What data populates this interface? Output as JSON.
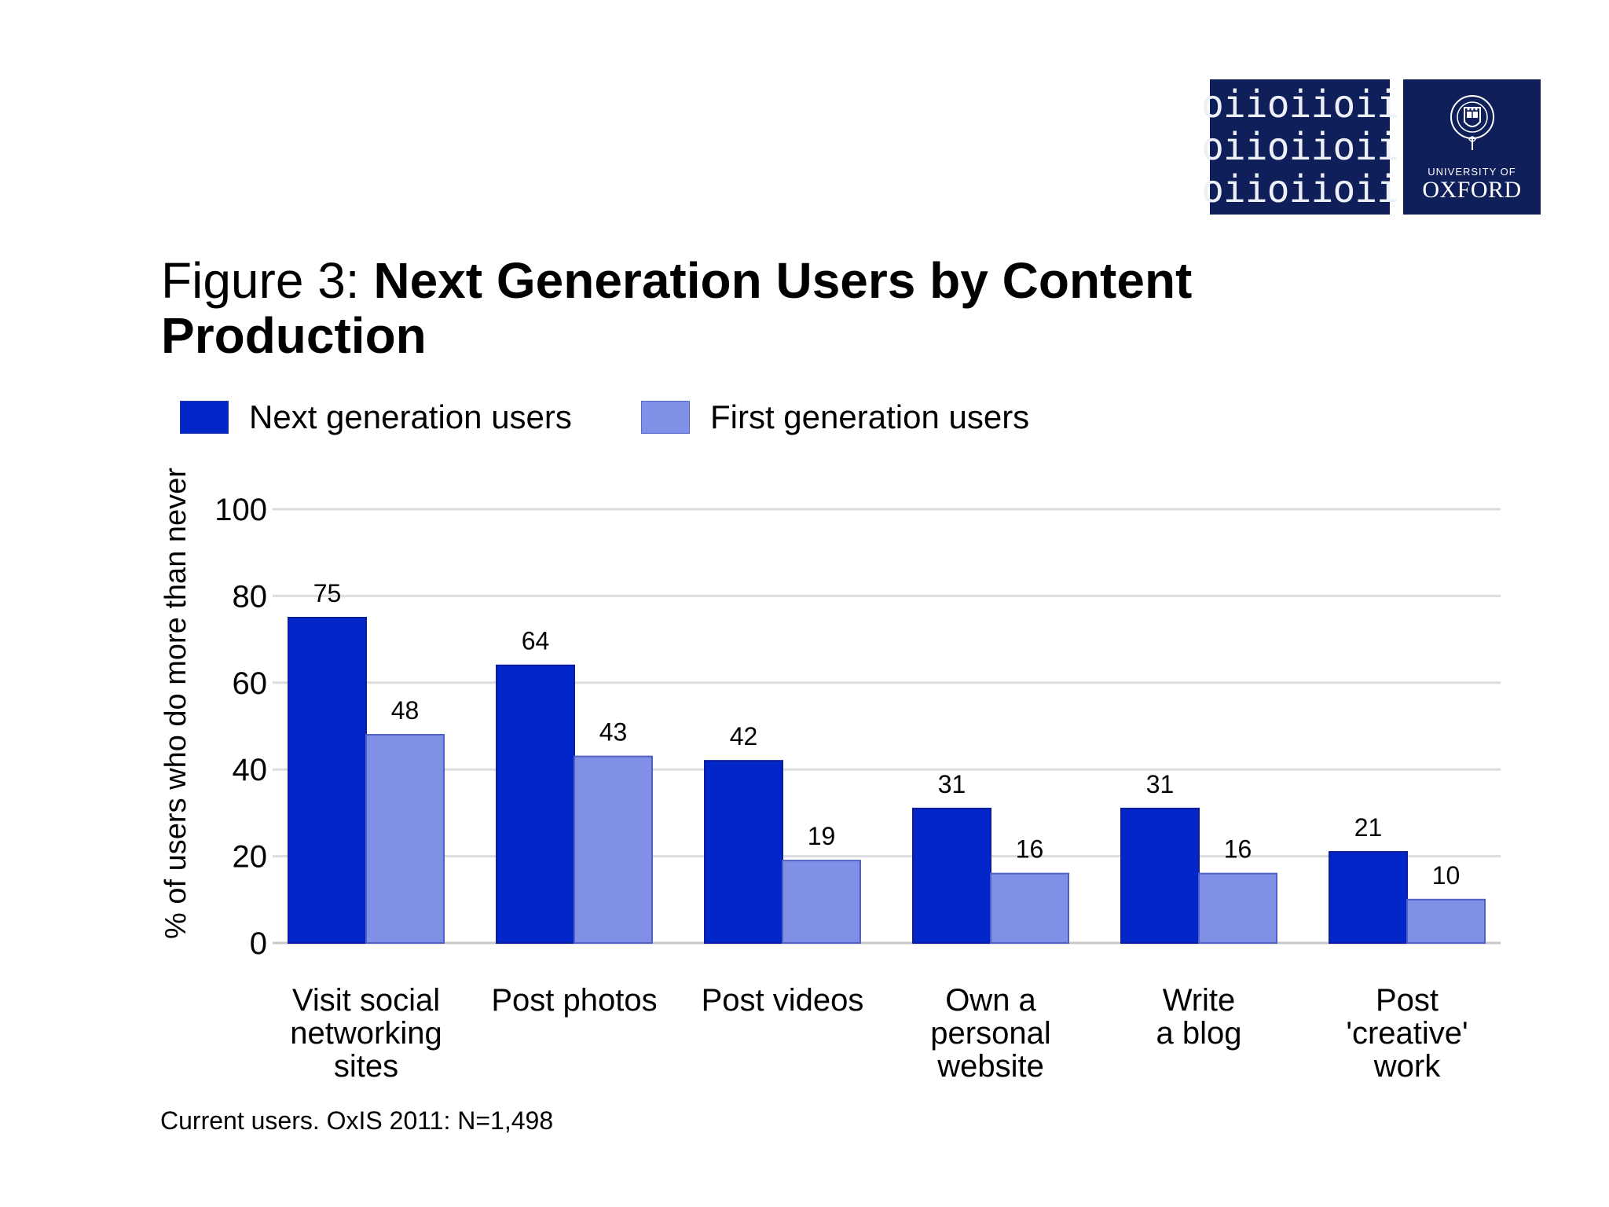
{
  "logo": {
    "rows": [
      "oiioiioii",
      "oiioiioii",
      "oiioiioii"
    ],
    "university_of": "UNIVERSITY OF",
    "oxford": "OXFORD",
    "crest_text": "UNIVERSITY OF OXFORD"
  },
  "title": {
    "prefix": "Figure 3: ",
    "main": "Next Generation Users by Content Production"
  },
  "footnote": "Current users. OxIS 2011: N=1,498",
  "colors": {
    "next_generation": "#0226c8",
    "first_generation": "#8090e6",
    "grid": "#dcdcdc",
    "navy": "#0e1f5a"
  },
  "chart_data": {
    "type": "bar",
    "title": "Next Generation Users by Content Production",
    "xlabel": "",
    "ylabel": "% of users who do more than never",
    "ylim": [
      0,
      100
    ],
    "yticks": [
      0,
      20,
      40,
      60,
      80,
      100
    ],
    "grid": true,
    "legend_position": "top-left",
    "categories": [
      [
        "Visit social",
        "networking",
        "sites"
      ],
      [
        "Post photos"
      ],
      [
        "Post videos"
      ],
      [
        "Own a",
        "personal",
        "website"
      ],
      [
        "Write",
        "a blog"
      ],
      [
        "Post",
        "'creative'",
        "work"
      ]
    ],
    "series": [
      {
        "name": "Next generation users",
        "color": "#0226c8",
        "values": [
          75,
          64,
          42,
          31,
          31,
          21
        ]
      },
      {
        "name": "First generation users",
        "color": "#8090e6",
        "values": [
          48,
          43,
          19,
          16,
          16,
          10
        ]
      }
    ]
  }
}
